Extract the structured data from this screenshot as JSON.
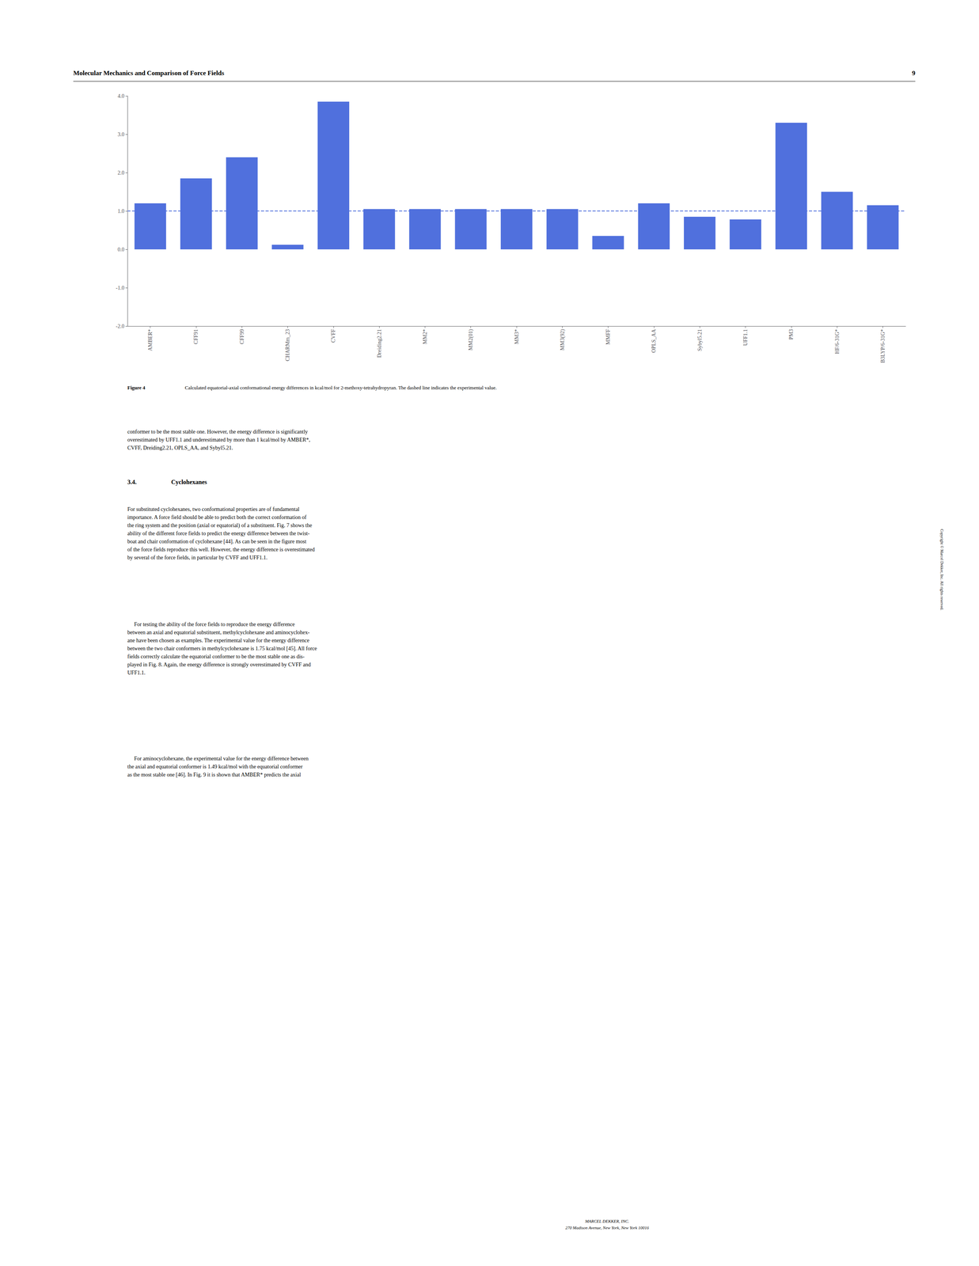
{
  "chart_data": {
    "type": "bar",
    "categories": [
      "AMBER*",
      "CFF91",
      "CFF99",
      "CHARMm_23",
      "CVFF",
      "Dreiding2.21",
      "MM2*",
      "MM2(01)",
      "MM3*",
      "MM3(92)",
      "MMFF",
      "OPLS_AA",
      "Sybyl5.21",
      "UFF1.1",
      "PM3",
      "HF/6-31G*",
      "B3LYP/6-31G*"
    ],
    "values": [
      1.2,
      1.85,
      2.4,
      0.12,
      3.85,
      1.05,
      1.05,
      1.05,
      1.05,
      1.05,
      0.35,
      1.2,
      0.85,
      0.78,
      3.3,
      1.5,
      1.15
    ],
    "reference_line": 1.0,
    "ylim": [
      -2.0,
      4.0
    ],
    "yticks": [
      {
        "value": -2.0,
        "label": "-2.0"
      },
      {
        "value": -1.0,
        "label": "-1.0"
      },
      {
        "value": 0.0,
        "label": "0.0"
      },
      {
        "value": 1.0,
        "label": "1.0"
      },
      {
        "value": 2.0,
        "label": "2.0"
      },
      {
        "value": 3.0,
        "label": "3.0"
      },
      {
        "value": 4.0,
        "label": "4.0"
      }
    ],
    "grid": false,
    "annotations": [
      "Molecular Mechanics and Comparison of Force Fields",
      "9",
      "Figure 4",
      "   Calculated equatorial-axial conformational energy differences in kcal/mol for 2-methoxy-tetrahydropyran. The dashed line indicates the experimental value.",
      "conformer to be the most stable one. However, the energy difference is significantly\noverestimated by UFF1.1 and underestimated by more than 1 kcal/mol by AMBER*,\nCVFF, Dreiding2.21, OPLS_AA, and Sybyl5.21.",
      "3.4.",
      "Cyclohexanes",
      "For substituted cyclohexanes, two conformational properties are of fundamental\nimportance. A force field should be able to predict both the correct conformation of\nthe ring system and the position (axial or equatorial) of a substituent. Fig. 7 shows the\nability of the different force fields to predict the energy difference between the twist-\nboat and chair conformation of cyclohexane [44]. As can be seen in the figure most\nof the force fields reproduce this well. However, the energy difference is overestimated\nby several of the force fields, in particular by CVFF and UFF1.1.",
      "     For testing the ability of the force fields to reproduce the energy difference\nbetween an axial and equatorial substituent, methylcyclohexane and aminocyclohex-\nane have been chosen as examples. The experimental value for the energy difference\nbetween the two chair conformers in methylcyclohexane is 1.75 kcal/mol [45]. All force\nfields correctly calculate the equatorial conformer to be the most stable one as dis-\nplayed in Fig. 8. Again, the energy difference is strongly overestimated by CVFF and\nUFF1.1.",
      "     For aminocyclohexane, the experimental value for the energy difference between\nthe axial and equatorial conformer is 1.49 kcal/mol with the equatorial conformer\nas the most stable one [46]. In Fig. 9 it is shown that AMBER* predicts the axial",
      "MARCEL DEKKER, INC.\n270 Madison Avenue, New York, New York 10016",
      "Copyright © Marcel Dekker, Inc. All rights reserved."
    ]
  }
}
